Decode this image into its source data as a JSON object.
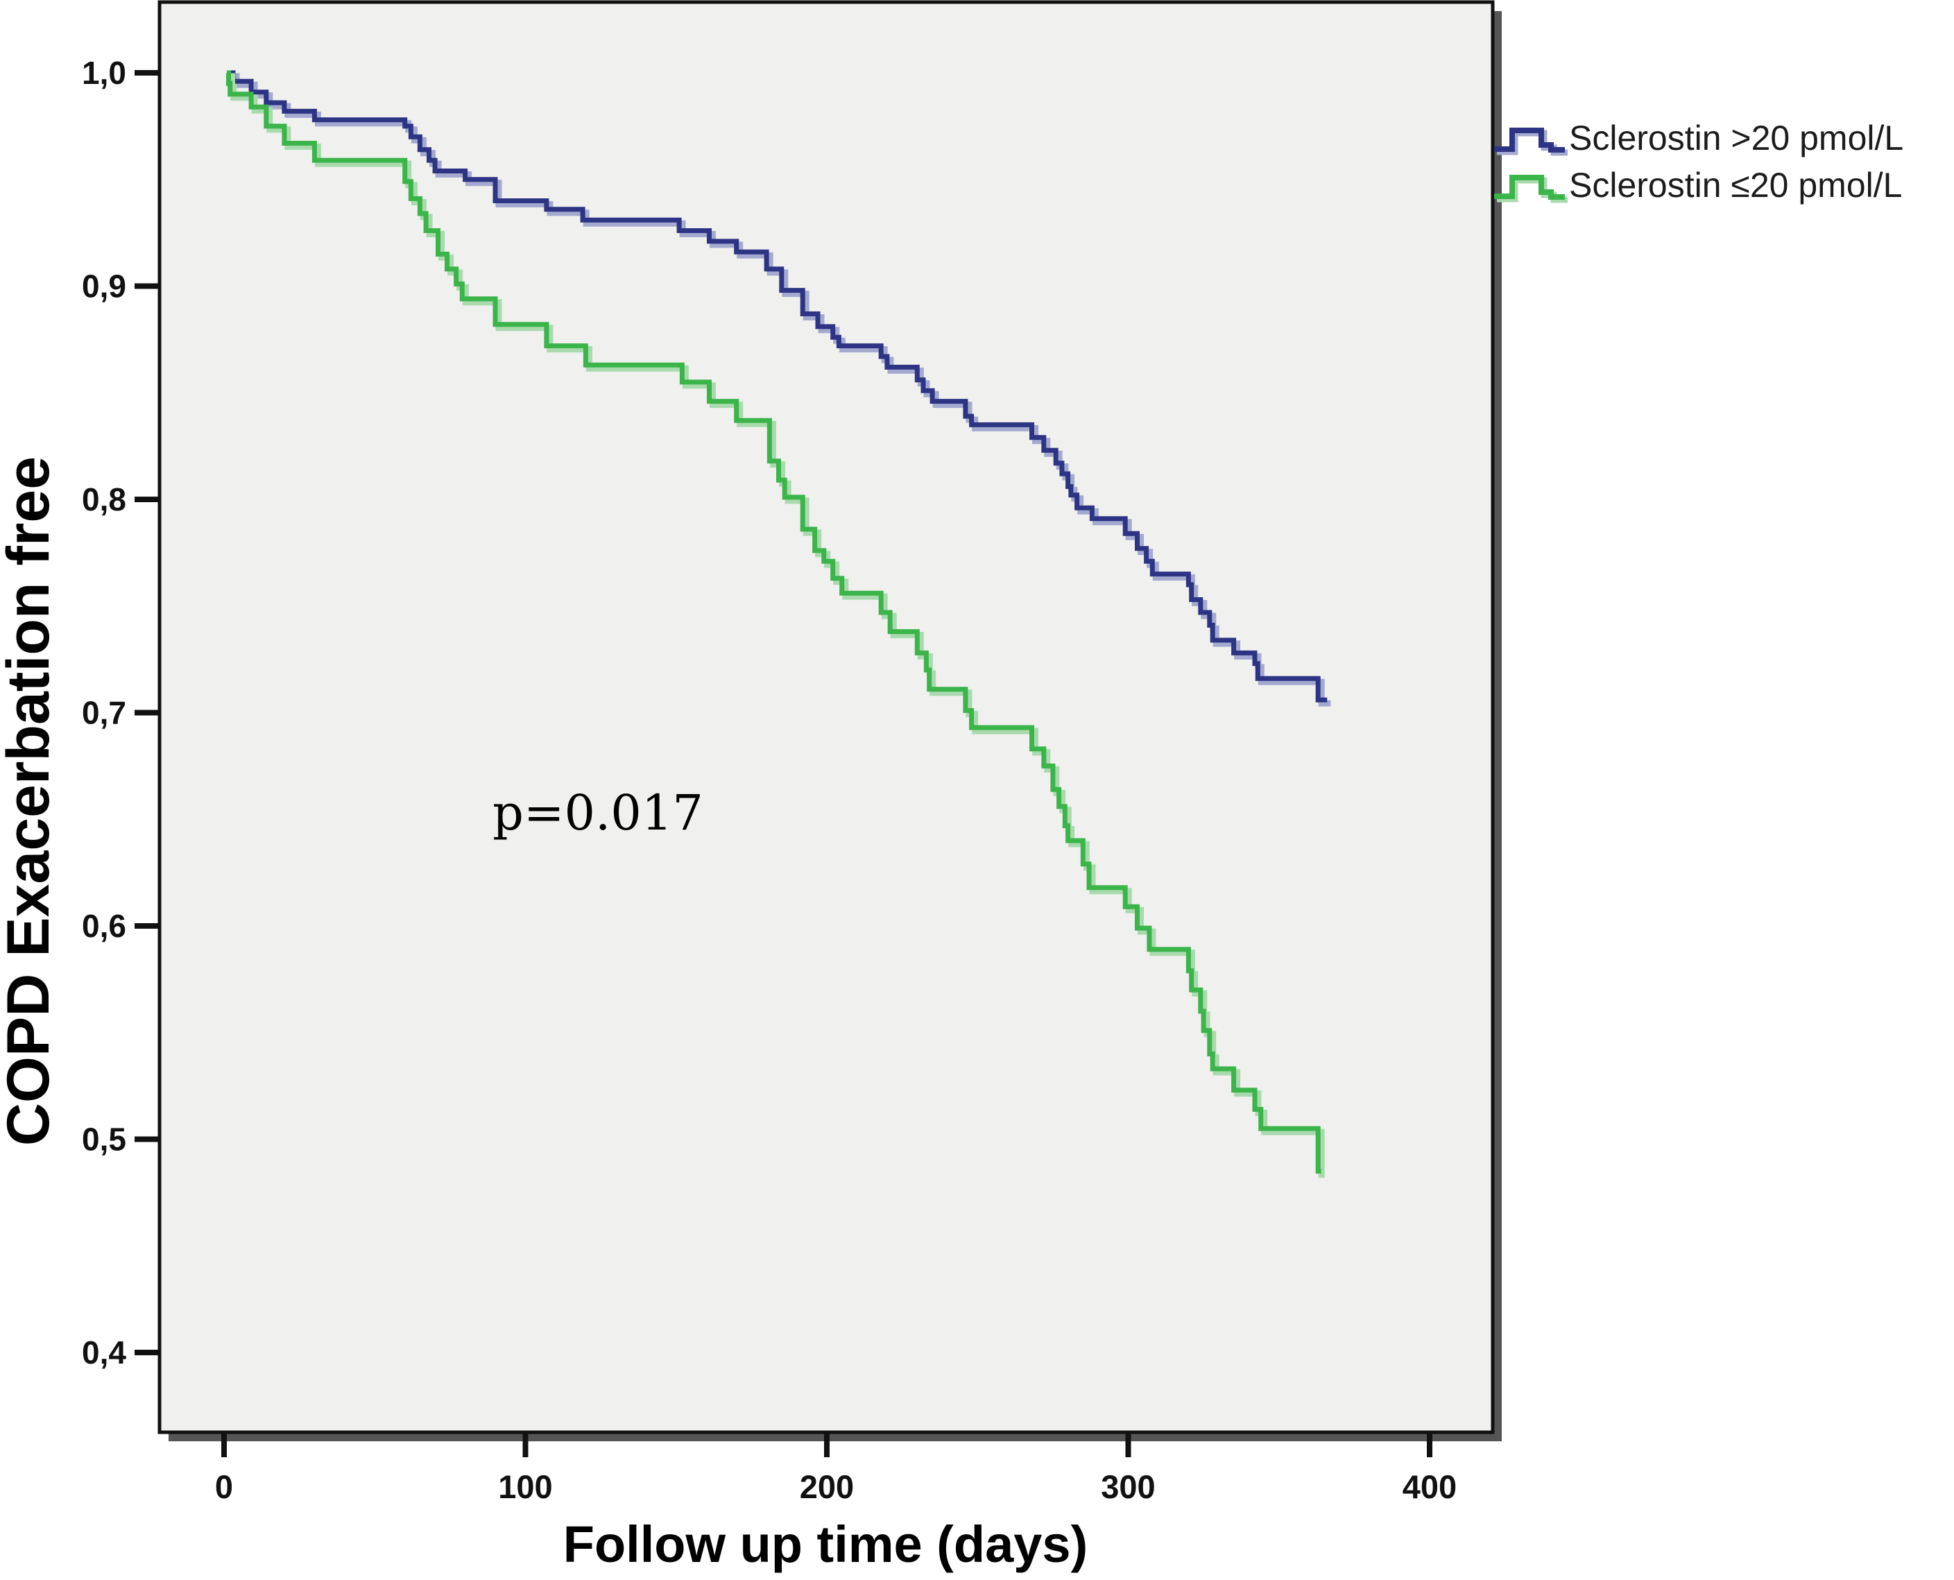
{
  "chart_data": {
    "type": "line",
    "subtype": "kaplan-meier-step",
    "title": "",
    "xlabel": "Follow up time (days)",
    "ylabel": "COPD Exacerbation free",
    "xlim": [
      -21,
      421
    ],
    "ylim": [
      0.363,
      1.032
    ],
    "grid": false,
    "legend_position": "top-right-outside",
    "plot_background_color": "#f0f0ee",
    "frame_color": "#111111",
    "frame_shadow_color": "#555555",
    "x_ticks": [
      {
        "label": "0",
        "value": 0
      },
      {
        "label": "100",
        "value": 100
      },
      {
        "label": "200",
        "value": 200
      },
      {
        "label": "300",
        "value": 300
      },
      {
        "label": "400",
        "value": 400
      }
    ],
    "y_ticks": [
      {
        "label": "1,0",
        "value": 1.0
      },
      {
        "label": "0,9",
        "value": 0.9
      },
      {
        "label": "0,8",
        "value": 0.8
      },
      {
        "label": "0,7",
        "value": 0.7
      },
      {
        "label": "0,6",
        "value": 0.6
      },
      {
        "label": "0,5",
        "value": 0.5
      },
      {
        "label": "0,4",
        "value": 0.4
      }
    ],
    "series": [
      {
        "name": "Sclerostin >20 pmol/L",
        "color": "#2d3484",
        "light_color": "#a4aacf",
        "end_day": 366,
        "points": [
          [
            1,
            1.0
          ],
          [
            3,
            0.996
          ],
          [
            9,
            0.991
          ],
          [
            14,
            0.986
          ],
          [
            20,
            0.982
          ],
          [
            30,
            0.978
          ],
          [
            60,
            0.975
          ],
          [
            62,
            0.97
          ],
          [
            65,
            0.964
          ],
          [
            68,
            0.959
          ],
          [
            70,
            0.954
          ],
          [
            80,
            0.95
          ],
          [
            90,
            0.94
          ],
          [
            107,
            0.936
          ],
          [
            119,
            0.931
          ],
          [
            151,
            0.926
          ],
          [
            161,
            0.921
          ],
          [
            170,
            0.916
          ],
          [
            180,
            0.908
          ],
          [
            185,
            0.898
          ],
          [
            192,
            0.887
          ],
          [
            197,
            0.881
          ],
          [
            202,
            0.876
          ],
          [
            204,
            0.872
          ],
          [
            218,
            0.867
          ],
          [
            220,
            0.862
          ],
          [
            230,
            0.856
          ],
          [
            232,
            0.851
          ],
          [
            235,
            0.846
          ],
          [
            246,
            0.839
          ],
          [
            248,
            0.835
          ],
          [
            268,
            0.829
          ],
          [
            272,
            0.823
          ],
          [
            276,
            0.817
          ],
          [
            278,
            0.812
          ],
          [
            280,
            0.806
          ],
          [
            281,
            0.802
          ],
          [
            283,
            0.796
          ],
          [
            288,
            0.791
          ],
          [
            299,
            0.784
          ],
          [
            303,
            0.777
          ],
          [
            306,
            0.771
          ],
          [
            308,
            0.765
          ],
          [
            320,
            0.76
          ],
          [
            321,
            0.753
          ],
          [
            324,
            0.747
          ],
          [
            327,
            0.741
          ],
          [
            328,
            0.734
          ],
          [
            335,
            0.728
          ],
          [
            342,
            0.723
          ],
          [
            343,
            0.716
          ],
          [
            363,
            0.706
          ]
        ]
      },
      {
        "name": "Sclerostin ≤20 pmol/L",
        "color": "#3bb44a",
        "light_color": "#a9daae",
        "end_day": 364,
        "points": [
          [
            1,
            1.0
          ],
          [
            1.5,
            0.995
          ],
          [
            2,
            0.99
          ],
          [
            9,
            0.984
          ],
          [
            14,
            0.975
          ],
          [
            20,
            0.967
          ],
          [
            30,
            0.959
          ],
          [
            60,
            0.949
          ],
          [
            62,
            0.941
          ],
          [
            65,
            0.934
          ],
          [
            67,
            0.926
          ],
          [
            71,
            0.915
          ],
          [
            74,
            0.908
          ],
          [
            77,
            0.901
          ],
          [
            79,
            0.894
          ],
          [
            90,
            0.882
          ],
          [
            107,
            0.872
          ],
          [
            120,
            0.863
          ],
          [
            152,
            0.855
          ],
          [
            161,
            0.846
          ],
          [
            170,
            0.837
          ],
          [
            181,
            0.818
          ],
          [
            184,
            0.809
          ],
          [
            186,
            0.801
          ],
          [
            192,
            0.786
          ],
          [
            196,
            0.776
          ],
          [
            199,
            0.771
          ],
          [
            202,
            0.763
          ],
          [
            205,
            0.756
          ],
          [
            218,
            0.747
          ],
          [
            221,
            0.738
          ],
          [
            230,
            0.728
          ],
          [
            233,
            0.72
          ],
          [
            234,
            0.711
          ],
          [
            246,
            0.701
          ],
          [
            248,
            0.693
          ],
          [
            268,
            0.683
          ],
          [
            272,
            0.675
          ],
          [
            275,
            0.664
          ],
          [
            277,
            0.656
          ],
          [
            279,
            0.647
          ],
          [
            280,
            0.64
          ],
          [
            285,
            0.629
          ],
          [
            287,
            0.618
          ],
          [
            299,
            0.609
          ],
          [
            303,
            0.599
          ],
          [
            307,
            0.589
          ],
          [
            320,
            0.579
          ],
          [
            321,
            0.57
          ],
          [
            324,
            0.56
          ],
          [
            325,
            0.551
          ],
          [
            327,
            0.54
          ],
          [
            328,
            0.533
          ],
          [
            335,
            0.523
          ],
          [
            342,
            0.514
          ],
          [
            344,
            0.505
          ],
          [
            363,
            0.485
          ]
        ]
      }
    ],
    "annotations": [
      {
        "text": "p=0.017",
        "x_day": 124,
        "y_value": 0.652
      }
    ]
  },
  "legend": {
    "entries": [
      {
        "label": "Sclerostin >20 pmol/L"
      },
      {
        "label": "Sclerostin ≤20 pmol/L"
      }
    ]
  },
  "axes": {
    "x_title": "Follow up time (days)",
    "y_title": "COPD Exacerbation free"
  },
  "annotation": {
    "p_value": "p=0.017"
  }
}
